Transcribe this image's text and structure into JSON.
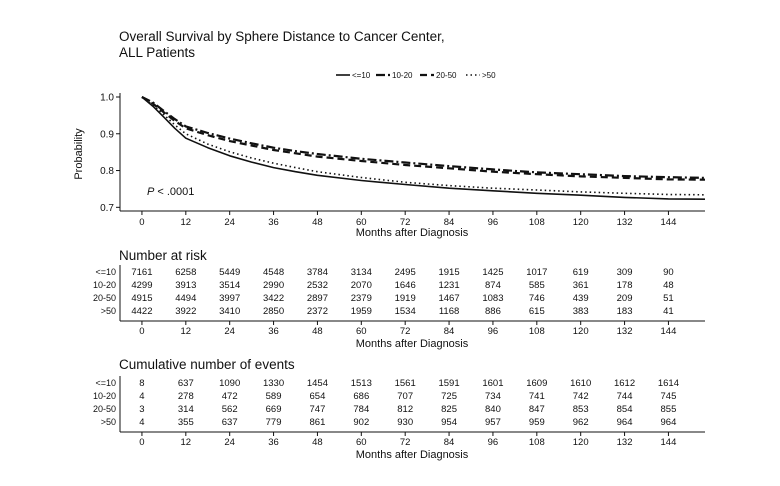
{
  "chart_data": [
    {
      "type": "line",
      "title": "Overall Survival by Sphere Distance to Cancer Center,",
      "subtitle": "ALL Patients",
      "xlabel": "Months after Diagnosis",
      "ylabel": "Probability",
      "xlim": [
        -6,
        154
      ],
      "ylim": [
        0.69,
        1.0
      ],
      "x_ticks": [
        0,
        12,
        24,
        36,
        48,
        60,
        72,
        84,
        96,
        108,
        120,
        132,
        144
      ],
      "y_ticks": [
        0.7,
        0.8,
        0.9,
        1.0
      ],
      "y_tick_labels": [
        "0.7",
        "0.8",
        "0.9",
        "1.0"
      ],
      "legend_position": "top-right",
      "grid": false,
      "annotation": {
        "label": "P",
        "text": " < .0001"
      },
      "series": [
        {
          "name": "<=10",
          "x": [
            0,
            3,
            6,
            9,
            12,
            18,
            24,
            30,
            36,
            42,
            48,
            60,
            72,
            84,
            96,
            108,
            120,
            132,
            144,
            154
          ],
          "y": [
            1.0,
            0.975,
            0.945,
            0.915,
            0.888,
            0.862,
            0.84,
            0.823,
            0.808,
            0.797,
            0.787,
            0.773,
            0.762,
            0.752,
            0.745,
            0.738,
            0.733,
            0.727,
            0.723,
            0.722
          ]
        },
        {
          "name": "10-20",
          "x": [
            0,
            3,
            6,
            9,
            12,
            18,
            24,
            30,
            36,
            42,
            48,
            60,
            72,
            84,
            96,
            108,
            120,
            132,
            144,
            154
          ],
          "y": [
            1.0,
            0.985,
            0.962,
            0.94,
            0.92,
            0.902,
            0.887,
            0.874,
            0.862,
            0.853,
            0.845,
            0.832,
            0.822,
            0.812,
            0.803,
            0.795,
            0.79,
            0.785,
            0.782,
            0.78
          ]
        },
        {
          "name": "20-50",
          "x": [
            0,
            3,
            6,
            9,
            12,
            18,
            24,
            30,
            36,
            42,
            48,
            60,
            72,
            84,
            96,
            108,
            120,
            132,
            144,
            154
          ],
          "y": [
            1.0,
            0.982,
            0.958,
            0.935,
            0.915,
            0.896,
            0.88,
            0.868,
            0.856,
            0.847,
            0.838,
            0.826,
            0.815,
            0.806,
            0.797,
            0.79,
            0.784,
            0.78,
            0.776,
            0.775
          ]
        },
        {
          "name": ">50",
          "x": [
            0,
            3,
            6,
            9,
            12,
            18,
            24,
            30,
            36,
            42,
            48,
            60,
            72,
            84,
            96,
            108,
            120,
            132,
            144,
            154
          ],
          "y": [
            1.0,
            0.978,
            0.952,
            0.924,
            0.9,
            0.872,
            0.851,
            0.834,
            0.82,
            0.808,
            0.797,
            0.781,
            0.768,
            0.759,
            0.752,
            0.747,
            0.742,
            0.738,
            0.735,
            0.734
          ]
        }
      ]
    },
    {
      "type": "table",
      "title": "Number at risk",
      "xlabel": "Months after Diagnosis",
      "columns": [
        "0",
        "12",
        "24",
        "36",
        "48",
        "60",
        "72",
        "84",
        "96",
        "108",
        "120",
        "132",
        "144"
      ],
      "rows": [
        {
          "label": "<=10",
          "values": [
            7161,
            6258,
            5449,
            4548,
            3784,
            3134,
            2495,
            1915,
            1425,
            1017,
            619,
            309,
            90
          ]
        },
        {
          "label": "10-20",
          "values": [
            4299,
            3913,
            3514,
            2990,
            2532,
            2070,
            1646,
            1231,
            874,
            585,
            361,
            178,
            48
          ]
        },
        {
          "label": "20-50",
          "values": [
            4915,
            4494,
            3997,
            3422,
            2897,
            2379,
            1919,
            1467,
            1083,
            746,
            439,
            209,
            51
          ]
        },
        {
          "label": ">50",
          "values": [
            4422,
            3922,
            3410,
            2850,
            2372,
            1959,
            1534,
            1168,
            886,
            615,
            383,
            183,
            41
          ]
        }
      ]
    },
    {
      "type": "table",
      "title": "Cumulative number of events",
      "xlabel": "Months after Diagnosis",
      "columns": [
        "0",
        "12",
        "24",
        "36",
        "48",
        "60",
        "72",
        "84",
        "96",
        "108",
        "120",
        "132",
        "144"
      ],
      "rows": [
        {
          "label": "<=10",
          "values": [
            8,
            637,
            1090,
            1330,
            1454,
            1513,
            1561,
            1591,
            1601,
            1609,
            1610,
            1612,
            1614
          ]
        },
        {
          "label": "10-20",
          "values": [
            4,
            278,
            472,
            589,
            654,
            686,
            707,
            725,
            734,
            741,
            742,
            744,
            745
          ]
        },
        {
          "label": "20-50",
          "values": [
            3,
            314,
            562,
            669,
            747,
            784,
            812,
            825,
            840,
            847,
            853,
            854,
            855
          ]
        },
        {
          "label": ">50",
          "values": [
            4,
            355,
            637,
            779,
            861,
            902,
            930,
            954,
            957,
            959,
            962,
            964,
            964
          ]
        }
      ]
    }
  ]
}
